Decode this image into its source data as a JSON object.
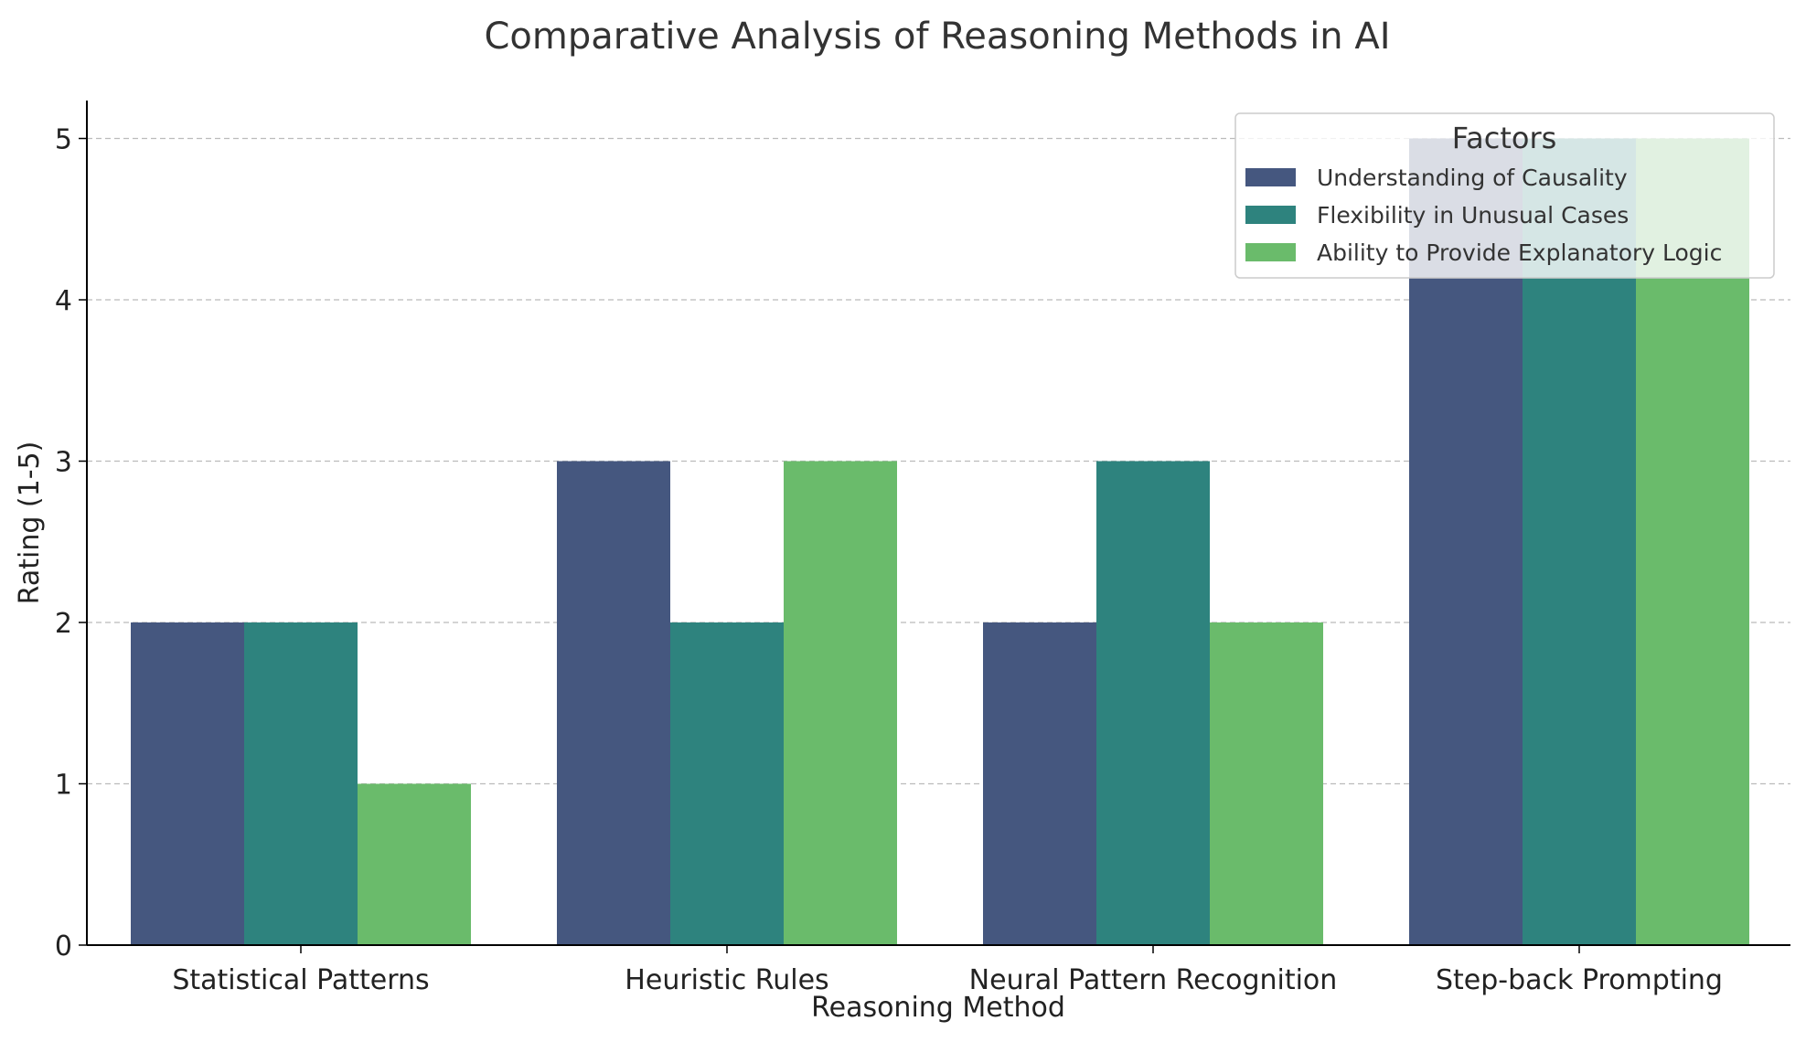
{
  "chart_data": {
    "type": "bar",
    "title": "Comparative Analysis of Reasoning Methods in AI",
    "xlabel": "Reasoning Method",
    "ylabel": "Rating (1-5)",
    "categories": [
      "Statistical Patterns",
      "Heuristic Rules",
      "Neural Pattern Recognition",
      "Step-back Prompting"
    ],
    "series": [
      {
        "name": "Understanding of Causality",
        "values": [
          2,
          3,
          2,
          5
        ],
        "color": "#45577f"
      },
      {
        "name": "Flexibility in Unusual Cases",
        "values": [
          2,
          2,
          3,
          5
        ],
        "color": "#2e837e"
      },
      {
        "name": "Ability to Provide Explanatory Logic",
        "values": [
          1,
          3,
          2,
          5
        ],
        "color": "#6abb6b"
      }
    ],
    "ylim": [
      0,
      5.25
    ],
    "yticks": [
      0,
      1,
      2,
      3,
      4,
      5
    ],
    "grid": "y-dashed",
    "legend": {
      "title": "Factors",
      "placement": "top-right"
    }
  }
}
